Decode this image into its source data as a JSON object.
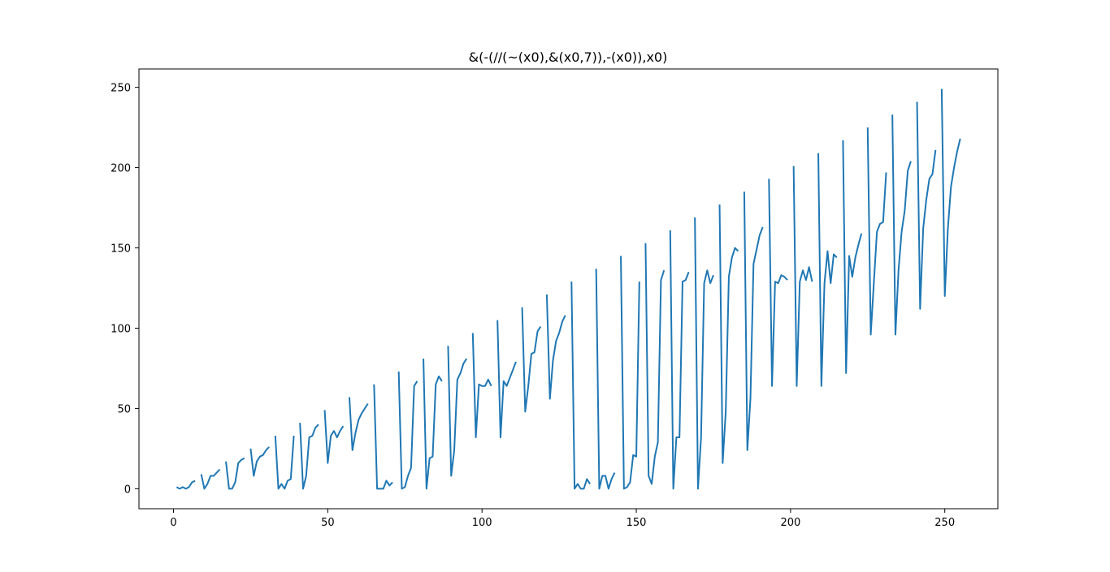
{
  "chart_data": {
    "type": "line",
    "title": "&(-(//(~(x0),&(x0,7)),-(x0)),x0)",
    "xlabel": "",
    "ylabel": "",
    "xlim": [
      -11.2,
      267.2
    ],
    "ylim": [
      -12.45,
      261.45
    ],
    "xticks": [
      0,
      50,
      100,
      150,
      200,
      250
    ],
    "yticks": [
      0,
      50,
      100,
      150,
      200,
      250
    ],
    "grid": false,
    "legend": "none",
    "colors": {
      "line": "#1f77b4",
      "axes": "#000000",
      "background": "#ffffff"
    },
    "series": [
      {
        "segments": [
          {
            "x": [
              1,
              2,
              3,
              4,
              5,
              6,
              7
            ],
            "y": [
              1,
              0,
              1,
              0,
              1,
              4,
              5
            ]
          },
          {
            "x": [
              9,
              10,
              11,
              12,
              13,
              14,
              15
            ],
            "y": [
              9,
              0,
              3,
              8,
              8,
              10,
              12
            ]
          },
          {
            "x": [
              17,
              18,
              19,
              20,
              21,
              22,
              23
            ],
            "y": [
              17,
              0,
              0,
              4,
              16,
              18,
              19
            ]
          },
          {
            "x": [
              25,
              26,
              27,
              28,
              29,
              30,
              31
            ],
            "y": [
              25,
              8,
              17,
              20,
              21,
              24,
              26
            ]
          },
          {
            "x": [
              33,
              34,
              35,
              36,
              37,
              38,
              39
            ],
            "y": [
              33,
              0,
              3,
              0,
              5,
              6,
              33
            ]
          },
          {
            "x": [
              41,
              42,
              43,
              44,
              45,
              46,
              47
            ],
            "y": [
              41,
              0,
              8,
              32,
              33,
              38,
              40
            ]
          },
          {
            "x": [
              49,
              50,
              51,
              52,
              53,
              54,
              55
            ],
            "y": [
              49,
              16,
              33,
              36,
              32,
              36,
              39
            ]
          },
          {
            "x": [
              57,
              58,
              59,
              60,
              61,
              62,
              63
            ],
            "y": [
              57,
              24,
              35,
              43,
              47,
              50,
              53
            ]
          },
          {
            "x": [
              65,
              66,
              67,
              68,
              69,
              70,
              71
            ],
            "y": [
              65,
              0,
              0,
              0,
              5,
              2,
              4
            ]
          },
          {
            "x": [
              73,
              74,
              75,
              76,
              77,
              78,
              79
            ],
            "y": [
              73,
              0,
              1,
              8,
              13,
              64,
              67
            ]
          },
          {
            "x": [
              81,
              82,
              83,
              84,
              85,
              86,
              87
            ],
            "y": [
              81,
              0,
              19,
              20,
              65,
              70,
              67
            ]
          },
          {
            "x": [
              89,
              90,
              91,
              92,
              93,
              94,
              95
            ],
            "y": [
              89,
              8,
              24,
              68,
              72,
              78,
              81
            ]
          },
          {
            "x": [
              97,
              98,
              99,
              100,
              101,
              102,
              103
            ],
            "y": [
              97,
              32,
              65,
              64,
              64,
              68,
              64
            ]
          },
          {
            "x": [
              105,
              106,
              107,
              108,
              109,
              110,
              111
            ],
            "y": [
              105,
              32,
              67,
              64,
              69,
              74,
              79
            ]
          },
          {
            "x": [
              113,
              114,
              115,
              116,
              117,
              118,
              119
            ],
            "y": [
              113,
              48,
              64,
              84,
              85,
              98,
              101
            ]
          },
          {
            "x": [
              121,
              122,
              123,
              124,
              125,
              126,
              127
            ],
            "y": [
              121,
              56,
              80,
              92,
              97,
              104,
              108
            ]
          },
          {
            "x": [
              129,
              130,
              131,
              132,
              133,
              134,
              135
            ],
            "y": [
              129,
              0,
              3,
              0,
              0,
              6,
              3
            ]
          },
          {
            "x": [
              137,
              138,
              139,
              140,
              141,
              142,
              143
            ],
            "y": [
              137,
              0,
              8,
              8,
              0,
              6,
              10
            ]
          },
          {
            "x": [
              145,
              146,
              147,
              148,
              149,
              150,
              151
            ],
            "y": [
              145,
              0,
              1,
              4,
              21,
              20,
              129
            ]
          },
          {
            "x": [
              153,
              154,
              155,
              156,
              157,
              158,
              159
            ],
            "y": [
              153,
              8,
              3,
              20,
              29,
              130,
              136
            ]
          },
          {
            "x": [
              161,
              162,
              163,
              164,
              165,
              166,
              167
            ],
            "y": [
              161,
              0,
              32,
              32,
              129,
              130,
              135
            ]
          },
          {
            "x": [
              169,
              170,
              171,
              172,
              173,
              174,
              175
            ],
            "y": [
              169,
              0,
              32,
              128,
              136,
              128,
              133
            ]
          },
          {
            "x": [
              177,
              178,
              179,
              180,
              181,
              182,
              183
            ],
            "y": [
              177,
              16,
              48,
              132,
              144,
              150,
              148
            ]
          },
          {
            "x": [
              185,
              186,
              187,
              188,
              189,
              190,
              191
            ],
            "y": [
              185,
              24,
              56,
              140,
              149,
              158,
              163
            ]
          },
          {
            "x": [
              193,
              194,
              195,
              196,
              197,
              198,
              199
            ],
            "y": [
              193,
              64,
              129,
              128,
              133,
              132,
              130
            ]
          },
          {
            "x": [
              201,
              202,
              203,
              204,
              205,
              206,
              207
            ],
            "y": [
              201,
              64,
              129,
              136,
              130,
              138,
              129
            ]
          },
          {
            "x": [
              209,
              210,
              211,
              212,
              213,
              214,
              215
            ],
            "y": [
              209,
              64,
              128,
              148,
              128,
              146,
              144
            ]
          },
          {
            "x": [
              217,
              218,
              219,
              220,
              221,
              222,
              223
            ],
            "y": [
              217,
              72,
              145,
              132,
              144,
              152,
              159
            ]
          },
          {
            "x": [
              225,
              226,
              227,
              228,
              229,
              230,
              231
            ],
            "y": [
              225,
              96,
              128,
              160,
              165,
              166,
              197
            ]
          },
          {
            "x": [
              233,
              234,
              235,
              236,
              237,
              238,
              239
            ],
            "y": [
              233,
              96,
              136,
              160,
              173,
              198,
              204
            ]
          },
          {
            "x": [
              241,
              242,
              243,
              244,
              245,
              246,
              247
            ],
            "y": [
              241,
              112,
              162,
              180,
              193,
              196,
              211
            ]
          },
          {
            "x": [
              249,
              250,
              251,
              252,
              253,
              254,
              255
            ],
            "y": [
              249,
              120,
              162,
              188,
              200,
              210,
              218
            ]
          }
        ]
      }
    ]
  }
}
